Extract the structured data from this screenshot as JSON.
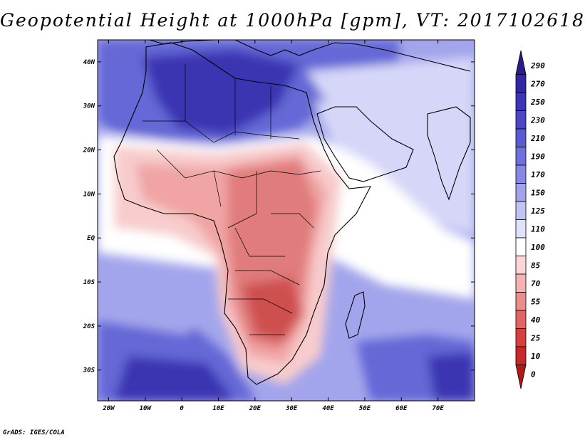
{
  "title": "Geopotential Height at 1000hPa [gpm], VT: 2017102618",
  "credit": "GrADS: IGES/COLA",
  "map": {
    "projection": "lat-lon",
    "lon_range": [
      -23,
      80
    ],
    "lat_range": [
      -37,
      45
    ],
    "lon_ticks": [
      {
        "value": -20,
        "label": "20W"
      },
      {
        "value": -10,
        "label": "10W"
      },
      {
        "value": 0,
        "label": "0"
      },
      {
        "value": 10,
        "label": "10E"
      },
      {
        "value": 20,
        "label": "20E"
      },
      {
        "value": 30,
        "label": "30E"
      },
      {
        "value": 40,
        "label": "40E"
      },
      {
        "value": 50,
        "label": "50E"
      },
      {
        "value": 60,
        "label": "60E"
      },
      {
        "value": 70,
        "label": "70E"
      }
    ],
    "lat_ticks": [
      {
        "value": 40,
        "label": "40N"
      },
      {
        "value": 30,
        "label": "30N"
      },
      {
        "value": 20,
        "label": "20N"
      },
      {
        "value": 10,
        "label": "10N"
      },
      {
        "value": 0,
        "label": "EQ"
      },
      {
        "value": -10,
        "label": "10S"
      },
      {
        "value": -20,
        "label": "20S"
      },
      {
        "value": -30,
        "label": "30S"
      }
    ]
  },
  "colorbar": {
    "labels": [
      "290",
      "270",
      "250",
      "230",
      "210",
      "190",
      "170",
      "150",
      "125",
      "110",
      "100",
      "85",
      "70",
      "55",
      "40",
      "25",
      "10",
      "0"
    ],
    "colors": [
      "#2a1a8c",
      "#3226a6",
      "#3c35b8",
      "#4a46c6",
      "#5a5ad2",
      "#6f70dc",
      "#8788e5",
      "#a1a3ed",
      "#c1c3f4",
      "#e0e1fa",
      "#ffffff",
      "#fad6d6",
      "#f4b2b2",
      "#ec8c8c",
      "#e26464",
      "#d84040",
      "#c92828",
      "#b31818"
    ]
  },
  "field_colors": {
    "deep_blue": "#3a34b2",
    "mid_blue": "#6567d6",
    "light_blue": "#a3a5ec",
    "pale_blue": "#d6d7f8",
    "white": "#ffffff",
    "pale_red": "#f8cccc",
    "light_red": "#f0a4a4",
    "mid_red": "#e07c7c",
    "deep_red": "#cf5050"
  }
}
